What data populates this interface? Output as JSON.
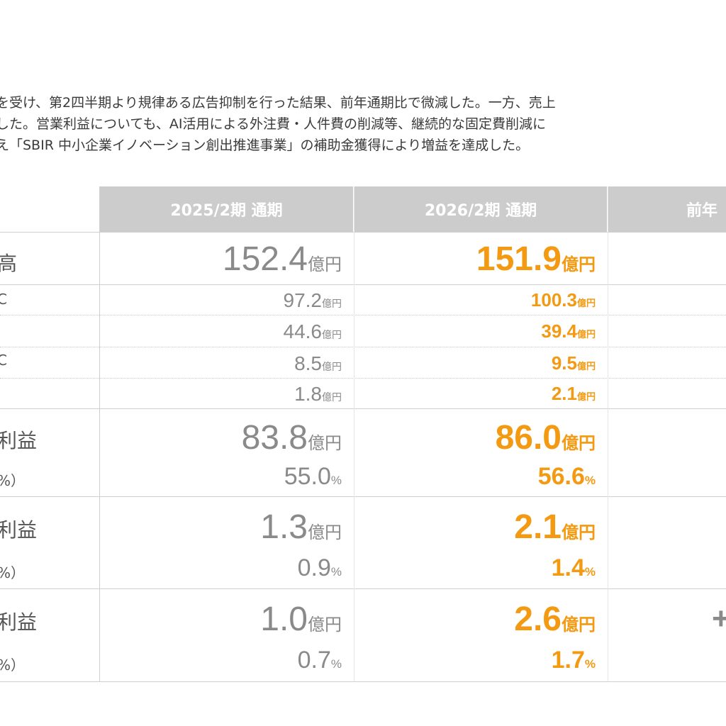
{
  "intro": {
    "line1": "を受け、第2四半期より規律ある広告抑制を行った結果、前年通期比で微減した。一方、売上",
    "line2": "した。営業利益についても、AI活用による外注費・人件費の削減等、継続的な固定費削減に",
    "line3": "え「SBIR 中小企業イノベーション創出推進事業」の補助金獲得により増益を達成した。"
  },
  "table": {
    "headers": [
      "2025/2期 通期",
      "2026/2期 通期",
      "前年"
    ],
    "rows": [
      {
        "label": "高",
        "prev": "152.4",
        "prev_unit": "億円",
        "cur": "151.9",
        "cur_unit": "億円"
      },
      {
        "label": "C",
        "prev": "97.2",
        "prev_unit": "億円",
        "cur": "100.3",
        "cur_unit": "億円"
      },
      {
        "label": "",
        "prev": "44.6",
        "prev_unit": "億円",
        "cur": "39.4",
        "cur_unit": "億円"
      },
      {
        "label": "C",
        "prev": "8.5",
        "prev_unit": "億円",
        "cur": "9.5",
        "cur_unit": "億円"
      },
      {
        "label": "",
        "prev": "1.8",
        "prev_unit": "億円",
        "cur": "2.1",
        "cur_unit": "億円"
      },
      {
        "label": "利益",
        "prev": "83.8",
        "prev_unit": "億円",
        "cur": "86.0",
        "cur_unit": "億円"
      },
      {
        "label": "%）",
        "prev": "55.0",
        "prev_unit": "%",
        "cur": "56.6",
        "cur_unit": "%"
      },
      {
        "label": "利益",
        "prev": "1.3",
        "prev_unit": "億円",
        "cur": "2.1",
        "cur_unit": "億円"
      },
      {
        "label": "%）",
        "prev": "0.9",
        "prev_unit": "%",
        "cur": "1.4",
        "cur_unit": "%"
      },
      {
        "label": "利益",
        "prev": "1.0",
        "prev_unit": "億円",
        "cur": "2.6",
        "cur_unit": "億円"
      },
      {
        "label": "%）",
        "prev": "0.7",
        "prev_unit": "%",
        "cur": "1.7",
        "cur_unit": "%"
      }
    ],
    "last_col_partial": "+"
  },
  "colors": {
    "accent": "#f39a12",
    "prev": "#8a8a8a",
    "header_bg": "#cccccc"
  }
}
